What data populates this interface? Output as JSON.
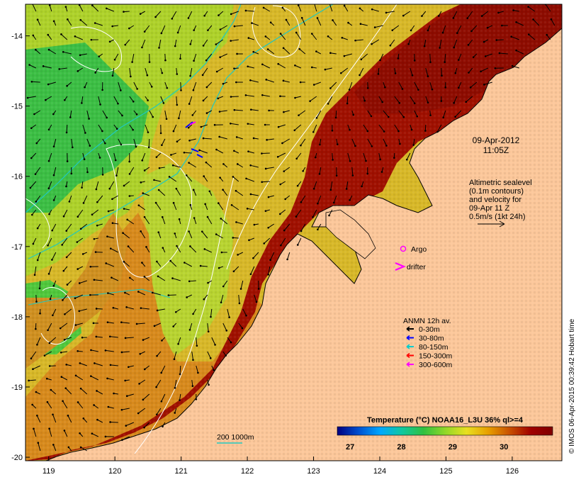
{
  "map": {
    "longitude_ticks": [
      "119",
      "120",
      "121",
      "122",
      "123",
      "124",
      "125",
      "126"
    ],
    "latitude_ticks": [
      "-14",
      "-15",
      "-16",
      "-17",
      "-18",
      "-19",
      "-20"
    ],
    "lon_range": [
      118.65,
      126.75
    ],
    "lat_range": [
      -20.05,
      -13.55
    ]
  },
  "timestamp": {
    "date": "09-Apr-2012",
    "time": "11:05Z"
  },
  "altimetry_note": {
    "lines": [
      "Altimetric sealevel",
      "(0.1m contours)",
      "and velocity for",
      "09-Apr 11 Z",
      "0.5m/s (1kt 24h)"
    ]
  },
  "markers": {
    "argo_label": "Argo",
    "drifter_label": "drifter"
  },
  "anmn_legend": {
    "title": "ANMN 12h av.",
    "items": [
      {
        "label": "0-30m",
        "color": "#000000"
      },
      {
        "label": "30-80m",
        "color": "#0000ff"
      },
      {
        "label": "80-150m",
        "color": "#00cccc"
      },
      {
        "label": "150-300m",
        "color": "#ff0000"
      },
      {
        "label": "300-600m",
        "color": "#ff00ff"
      }
    ]
  },
  "isobath_label": {
    "depths": "200  1000m"
  },
  "colorbar": {
    "title": "Temperature (°C) NOAA16_L3U 36% ql>=4",
    "ticks": [
      "27",
      "28",
      "29",
      "30"
    ],
    "range": [
      26.75,
      30.95
    ],
    "colors": [
      "#000080",
      "#0050d0",
      "#00a8ff",
      "#10c8a0",
      "#30c040",
      "#90d828",
      "#e8e020",
      "#e8a000",
      "#c85000",
      "#a00000",
      "#800000"
    ]
  },
  "credit": "© IMOS 06-Apr-2015 00:39:42 Hobart time",
  "colors": {
    "land": "#fcc79a",
    "hot": "#a01000",
    "warm": "#d88a1c",
    "mid": "#d2b41e",
    "cool": "#aed22a",
    "cold": "#3cc044"
  }
}
